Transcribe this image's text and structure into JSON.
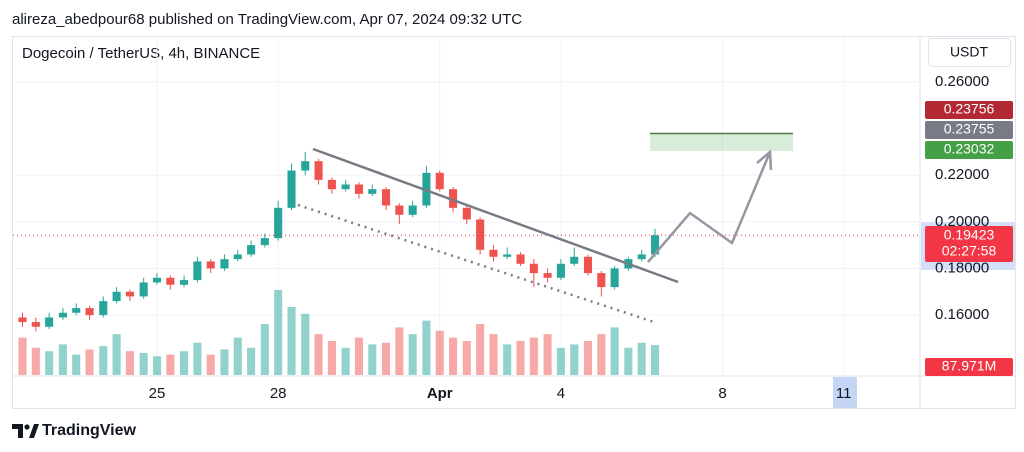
{
  "header": "alireza_abedpour68 published on TradingView.com, Apr 07, 2024 09:32 UTC",
  "footer": "TradingView",
  "chart_data": {
    "type": "candlestick",
    "title": "Dogecoin / TetherUS, 4h, BINANCE",
    "currency": "USDT",
    "x": [
      21.67,
      22.0,
      22.33,
      22.67,
      23.0,
      23.33,
      23.67,
      24.0,
      24.33,
      24.67,
      25.0,
      25.33,
      25.67,
      26.0,
      26.33,
      26.67,
      27.0,
      27.33,
      27.67,
      28.0,
      28.33,
      28.67,
      29.0,
      29.33,
      29.67,
      30.0,
      30.33,
      30.67,
      31.0,
      31.33,
      31.67,
      32.0,
      32.33,
      32.67,
      33.0,
      33.33,
      33.67,
      34.0,
      34.33,
      34.67,
      35.0,
      35.33,
      35.67,
      36.0,
      36.33,
      36.67,
      37.0,
      37.33
    ],
    "open": [
      0.159,
      0.157,
      0.155,
      0.159,
      0.161,
      0.163,
      0.16,
      0.166,
      0.17,
      0.168,
      0.174,
      0.176,
      0.173,
      0.175,
      0.183,
      0.18,
      0.184,
      0.186,
      0.19,
      0.193,
      0.206,
      0.222,
      0.226,
      0.218,
      0.214,
      0.216,
      0.212,
      0.214,
      0.207,
      0.203,
      0.207,
      0.221,
      0.214,
      0.206,
      0.201,
      0.188,
      0.185,
      0.186,
      0.182,
      0.178,
      0.176,
      0.182,
      0.185,
      0.178,
      0.172,
      0.18,
      0.184,
      0.186
    ],
    "high": [
      0.161,
      0.159,
      0.161,
      0.163,
      0.165,
      0.164,
      0.168,
      0.172,
      0.171,
      0.176,
      0.178,
      0.177,
      0.177,
      0.185,
      0.184,
      0.186,
      0.188,
      0.192,
      0.195,
      0.209,
      0.225,
      0.23,
      0.227,
      0.219,
      0.218,
      0.217,
      0.216,
      0.215,
      0.208,
      0.209,
      0.224,
      0.222,
      0.215,
      0.207,
      0.202,
      0.19,
      0.189,
      0.187,
      0.184,
      0.18,
      0.184,
      0.189,
      0.186,
      0.179,
      0.181,
      0.185,
      0.188,
      0.197
    ],
    "low": [
      0.155,
      0.153,
      0.154,
      0.158,
      0.16,
      0.158,
      0.159,
      0.165,
      0.166,
      0.167,
      0.173,
      0.171,
      0.172,
      0.174,
      0.178,
      0.179,
      0.183,
      0.185,
      0.189,
      0.192,
      0.205,
      0.22,
      0.216,
      0.212,
      0.213,
      0.21,
      0.211,
      0.205,
      0.199,
      0.202,
      0.206,
      0.213,
      0.204,
      0.199,
      0.186,
      0.183,
      0.184,
      0.181,
      0.172,
      0.174,
      0.175,
      0.181,
      0.177,
      0.168,
      0.171,
      0.179,
      0.183,
      0.185
    ],
    "close": [
      0.157,
      0.155,
      0.159,
      0.161,
      0.163,
      0.16,
      0.166,
      0.17,
      0.168,
      0.174,
      0.176,
      0.173,
      0.175,
      0.183,
      0.18,
      0.184,
      0.186,
      0.19,
      0.193,
      0.206,
      0.222,
      0.226,
      0.218,
      0.214,
      0.216,
      0.212,
      0.214,
      0.207,
      0.203,
      0.207,
      0.221,
      0.214,
      0.206,
      0.201,
      0.188,
      0.185,
      0.186,
      0.182,
      0.178,
      0.176,
      0.182,
      0.185,
      0.178,
      0.172,
      0.18,
      0.184,
      0.186,
      0.19423
    ],
    "volume": [
      110,
      80,
      70,
      90,
      60,
      75,
      85,
      120,
      70,
      65,
      55,
      60,
      70,
      95,
      60,
      75,
      110,
      80,
      150,
      250,
      200,
      180,
      120,
      100,
      80,
      110,
      90,
      95,
      140,
      120,
      160,
      130,
      110,
      100,
      150,
      120,
      90,
      100,
      110,
      120,
      80,
      90,
      100,
      120,
      140,
      80,
      95,
      87.971
    ],
    "volume_last_label": "87.971M",
    "vlim": [
      0,
      300
    ],
    "up_color": "#26a69a",
    "down_color": "#ef5350",
    "xlim": [
      21.41,
      43.89
    ],
    "ylim": [
      0.1343,
      0.2797
    ],
    "xticks": [
      {
        "value": 25,
        "label": "25"
      },
      {
        "value": 28,
        "label": "28"
      },
      {
        "value": 32,
        "label": "Apr"
      },
      {
        "value": 35,
        "label": "4"
      },
      {
        "value": 39,
        "label": "8"
      },
      {
        "value": 42,
        "label": "11"
      }
    ],
    "yticks": [
      {
        "value": 0.16,
        "label": "0.16000"
      },
      {
        "value": 0.18,
        "label": "0.18000"
      },
      {
        "value": 0.2,
        "label": "0.20000"
      },
      {
        "value": 0.22,
        "label": "0.22000"
      },
      {
        "value": 0.26,
        "label": "0.26000"
      }
    ],
    "grid": true,
    "price_tags": [
      0.23756,
      0.23755,
      0.23032
    ],
    "price_tag_colors": [
      "#b22833",
      "#787b86",
      "#43a047"
    ],
    "last_price": 0.19423,
    "countdown": "02:27:58"
  }
}
